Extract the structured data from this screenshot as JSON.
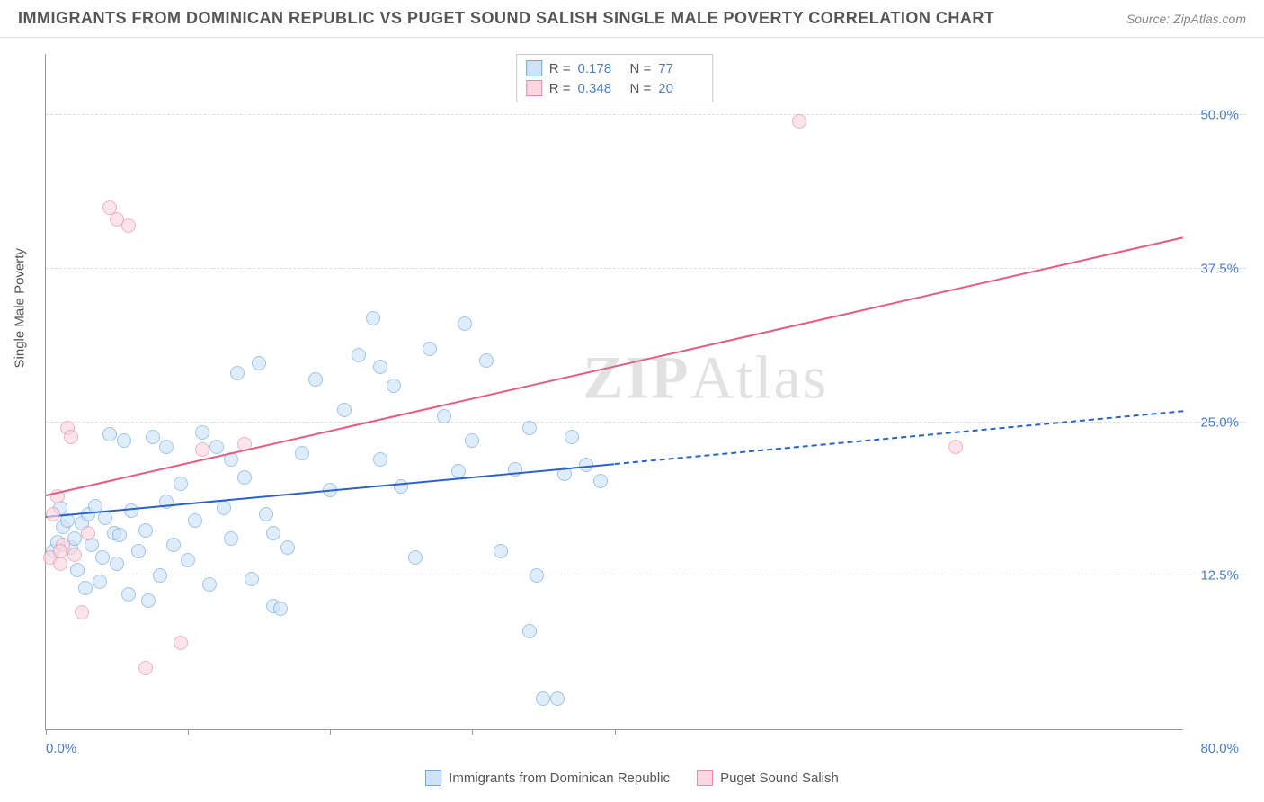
{
  "header": {
    "title": "IMMIGRANTS FROM DOMINICAN REPUBLIC VS PUGET SOUND SALISH SINGLE MALE POVERTY CORRELATION CHART",
    "source": "Source: ZipAtlas.com"
  },
  "watermark": {
    "bold": "ZIP",
    "thin": "Atlas"
  },
  "chart": {
    "type": "scatter",
    "y_axis_label": "Single Male Poverty",
    "x_origin_label": "0.0%",
    "x_end_label": "80.0%",
    "xlim": [
      0,
      80
    ],
    "ylim": [
      0,
      55
    ],
    "y_gridlines": [
      12.5,
      25.0,
      37.5,
      50.0
    ],
    "y_tick_labels": [
      "12.5%",
      "25.0%",
      "37.5%",
      "50.0%"
    ],
    "x_tick_positions": [
      0,
      10,
      20,
      30,
      40
    ],
    "background_color": "#ffffff",
    "grid_color": "#dddddd",
    "axis_color": "#999999",
    "label_color": "#4a7ec9",
    "marker_radius": 8,
    "series": [
      {
        "id": "blue",
        "name": "Immigrants from Dominican Republic",
        "marker_fill": "#cfe3f7",
        "marker_stroke": "#6ea6de",
        "fill_opacity": 0.65,
        "trend_color": "#2a62c9",
        "trend": {
          "x1": 0,
          "y1": 17.2,
          "x2": 40,
          "y2": 21.5,
          "dash_x2": 80,
          "dash_y2": 25.8
        },
        "R": "0.178",
        "N": "77",
        "points": [
          [
            0.5,
            14.5
          ],
          [
            0.8,
            15.2
          ],
          [
            1.0,
            18.0
          ],
          [
            1.2,
            16.5
          ],
          [
            1.5,
            17.0
          ],
          [
            1.8,
            14.8
          ],
          [
            2.0,
            15.5
          ],
          [
            2.2,
            13.0
          ],
          [
            2.5,
            16.8
          ],
          [
            2.8,
            11.5
          ],
          [
            3.0,
            17.5
          ],
          [
            3.2,
            15.0
          ],
          [
            3.5,
            18.2
          ],
          [
            3.8,
            12.0
          ],
          [
            4.0,
            14.0
          ],
          [
            4.2,
            17.2
          ],
          [
            4.5,
            24.0
          ],
          [
            4.8,
            16.0
          ],
          [
            5.0,
            13.5
          ],
          [
            5.2,
            15.8
          ],
          [
            5.5,
            23.5
          ],
          [
            5.8,
            11.0
          ],
          [
            6.0,
            17.8
          ],
          [
            6.5,
            14.5
          ],
          [
            7.0,
            16.2
          ],
          [
            7.2,
            10.5
          ],
          [
            7.5,
            23.8
          ],
          [
            8.0,
            12.5
          ],
          [
            8.5,
            18.5
          ],
          [
            9.0,
            15.0
          ],
          [
            9.5,
            20.0
          ],
          [
            10.0,
            13.8
          ],
          [
            10.5,
            17.0
          ],
          [
            11.0,
            24.2
          ],
          [
            11.5,
            11.8
          ],
          [
            12.0,
            23.0
          ],
          [
            12.5,
            18.0
          ],
          [
            13.0,
            15.5
          ],
          [
            13.5,
            29.0
          ],
          [
            14.0,
            20.5
          ],
          [
            14.5,
            12.2
          ],
          [
            15.0,
            29.8
          ],
          [
            15.5,
            17.5
          ],
          [
            16.0,
            10.0
          ],
          [
            16.5,
            9.8
          ],
          [
            17.0,
            14.8
          ],
          [
            18.0,
            22.5
          ],
          [
            19.0,
            28.5
          ],
          [
            20.0,
            19.5
          ],
          [
            21.0,
            26.0
          ],
          [
            22.0,
            30.5
          ],
          [
            23.0,
            33.5
          ],
          [
            23.5,
            22.0
          ],
          [
            24.5,
            28.0
          ],
          [
            25.0,
            19.8
          ],
          [
            26.0,
            14.0
          ],
          [
            27.0,
            31.0
          ],
          [
            28.0,
            25.5
          ],
          [
            29.0,
            21.0
          ],
          [
            29.5,
            33.0
          ],
          [
            30.0,
            23.5
          ],
          [
            31.0,
            30.0
          ],
          [
            32.0,
            14.5
          ],
          [
            33.0,
            21.2
          ],
          [
            34.0,
            24.5
          ],
          [
            34.5,
            12.5
          ],
          [
            35.0,
            2.5
          ],
          [
            36.0,
            2.5
          ],
          [
            36.5,
            20.8
          ],
          [
            37.0,
            23.8
          ],
          [
            38.0,
            21.5
          ],
          [
            39.0,
            20.2
          ],
          [
            34.0,
            8.0
          ],
          [
            23.5,
            29.5
          ],
          [
            13.0,
            22.0
          ],
          [
            8.5,
            23.0
          ],
          [
            16.0,
            16.0
          ]
        ]
      },
      {
        "id": "pink",
        "name": "Puget Sound Salish",
        "marker_fill": "#f9d7e0",
        "marker_stroke": "#e88aa5",
        "fill_opacity": 0.65,
        "trend_color": "#e85a7f",
        "trend": {
          "x1": 0,
          "y1": 19.0,
          "x2": 80,
          "y2": 40.0
        },
        "R": "0.348",
        "N": "20",
        "points": [
          [
            0.3,
            14.0
          ],
          [
            0.5,
            17.5
          ],
          [
            0.8,
            19.0
          ],
          [
            1.0,
            13.5
          ],
          [
            1.2,
            15.0
          ],
          [
            1.5,
            24.5
          ],
          [
            1.8,
            23.8
          ],
          [
            2.0,
            14.2
          ],
          [
            2.5,
            9.5
          ],
          [
            3.0,
            16.0
          ],
          [
            4.5,
            42.5
          ],
          [
            5.0,
            41.5
          ],
          [
            5.8,
            41.0
          ],
          [
            7.0,
            5.0
          ],
          [
            9.5,
            7.0
          ],
          [
            11.0,
            22.8
          ],
          [
            14.0,
            23.2
          ],
          [
            53.0,
            49.5
          ],
          [
            64.0,
            23.0
          ],
          [
            1.0,
            14.5
          ]
        ]
      }
    ],
    "top_legend": {
      "r_label": "R =",
      "n_label": "N ="
    },
    "bottom_legend_items": [
      {
        "swatch_fill": "#cfe3f7",
        "swatch_stroke": "#6ea6de",
        "label": "Immigrants from Dominican Republic"
      },
      {
        "swatch_fill": "#f9d7e0",
        "swatch_stroke": "#e88aa5",
        "label": "Puget Sound Salish"
      }
    ]
  }
}
